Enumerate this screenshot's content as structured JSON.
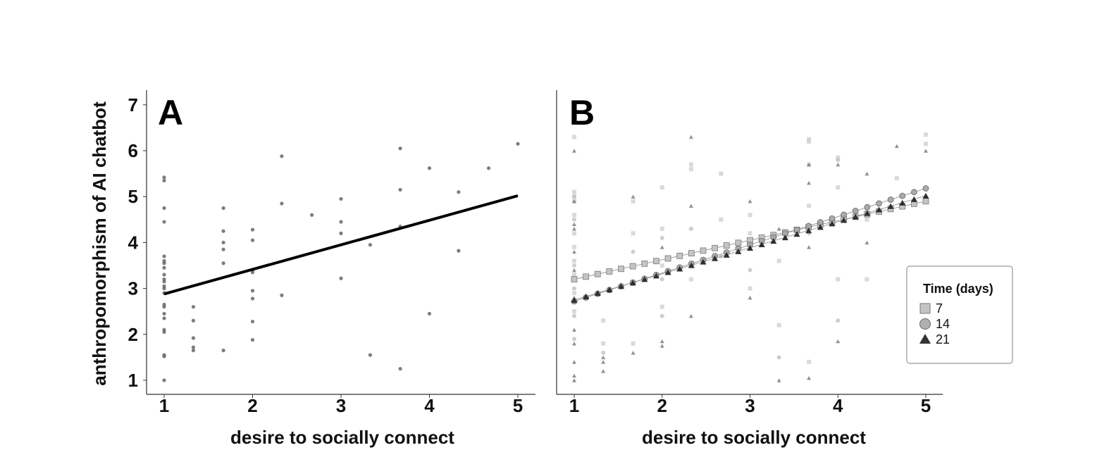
{
  "chart_data": [
    {
      "panel": "A",
      "type": "scatter",
      "xlabel": "desire to socially connect",
      "ylabel": "anthropomorphism of AI chatbot",
      "xlim": [
        0.8,
        5.2
      ],
      "ylim": [
        0.7,
        7.3
      ],
      "xticks": [
        "1",
        "2",
        "3",
        "4",
        "5"
      ],
      "yticks": [
        "1",
        "2",
        "3",
        "4",
        "5",
        "6",
        "7"
      ],
      "points": [
        [
          1,
          1.0
        ],
        [
          1,
          1.52
        ],
        [
          1,
          1.55
        ],
        [
          1,
          2.05
        ],
        [
          1,
          2.1
        ],
        [
          1,
          2.35
        ],
        [
          1,
          2.45
        ],
        [
          1,
          2.6
        ],
        [
          1,
          2.65
        ],
        [
          1,
          2.9
        ],
        [
          1,
          3.0
        ],
        [
          1,
          3.05
        ],
        [
          1,
          3.15
        ],
        [
          1,
          3.2
        ],
        [
          1,
          3.3
        ],
        [
          1,
          3.45
        ],
        [
          1,
          3.55
        ],
        [
          1,
          3.6
        ],
        [
          1,
          3.7
        ],
        [
          1,
          4.45
        ],
        [
          1,
          4.75
        ],
        [
          1,
          5.35
        ],
        [
          1,
          5.42
        ],
        [
          1.33,
          1.65
        ],
        [
          1.33,
          1.72
        ],
        [
          1.33,
          1.92
        ],
        [
          1.33,
          2.3
        ],
        [
          1.33,
          2.6
        ],
        [
          1.67,
          1.65
        ],
        [
          1.67,
          3.55
        ],
        [
          1.67,
          3.85
        ],
        [
          1.67,
          4.0
        ],
        [
          1.67,
          4.25
        ],
        [
          1.67,
          4.75
        ],
        [
          2,
          1.88
        ],
        [
          2,
          2.28
        ],
        [
          2,
          2.78
        ],
        [
          2,
          2.95
        ],
        [
          2,
          3.35
        ],
        [
          2,
          3.4
        ],
        [
          2,
          4.05
        ],
        [
          2,
          4.28
        ],
        [
          2.33,
          2.85
        ],
        [
          2.33,
          4.85
        ],
        [
          2.33,
          5.88
        ],
        [
          2.67,
          4.6
        ],
        [
          3,
          3.22
        ],
        [
          3,
          4.2
        ],
        [
          3,
          4.45
        ],
        [
          3,
          4.95
        ],
        [
          3.33,
          1.55
        ],
        [
          3.33,
          3.95
        ],
        [
          3.67,
          1.25
        ],
        [
          3.67,
          4.35
        ],
        [
          3.67,
          5.15
        ],
        [
          3.67,
          6.05
        ],
        [
          4,
          2.45
        ],
        [
          4,
          5.62
        ],
        [
          4.33,
          3.82
        ],
        [
          4.33,
          5.1
        ],
        [
          4.67,
          5.62
        ],
        [
          5,
          6.15
        ]
      ],
      "fit_line": {
        "x": [
          1,
          5
        ],
        "y": [
          2.88,
          5.02
        ]
      }
    },
    {
      "panel": "B",
      "type": "scatter",
      "xlabel": "desire to socially connect",
      "xlim": [
        0.8,
        5.2
      ],
      "ylim": [
        0.7,
        7.3
      ],
      "xticks": [
        "1",
        "2",
        "3",
        "4",
        "5"
      ],
      "legend": {
        "title": "Time (days)",
        "position": "right"
      },
      "series": [
        {
          "name": "7",
          "marker": "square",
          "color": "#bdbdbd",
          "line": {
            "x_start": 1.0,
            "y_start": 3.2,
            "x_end": 5.0,
            "y_end": 4.9
          },
          "raw_points": [
            [
              1,
              6.3
            ],
            [
              1,
              5.1
            ],
            [
              1,
              5.0
            ],
            [
              1,
              4.9
            ],
            [
              1,
              4.6
            ],
            [
              1,
              4.2
            ],
            [
              1,
              3.9
            ],
            [
              1,
              3.6
            ],
            [
              1,
              3.3
            ],
            [
              1,
              2.9
            ],
            [
              1,
              2.5
            ],
            [
              1.33,
              1.8
            ],
            [
              1.33,
              2.3
            ],
            [
              1.67,
              1.8
            ],
            [
              1.67,
              4.2
            ],
            [
              1.67,
              4.9
            ],
            [
              2,
              5.2
            ],
            [
              2,
              4.3
            ],
            [
              2,
              3.5
            ],
            [
              2,
              2.6
            ],
            [
              2.33,
              5.7
            ],
            [
              2.33,
              5.6
            ],
            [
              2.33,
              3.2
            ],
            [
              2.67,
              5.5
            ],
            [
              2.67,
              4.5
            ],
            [
              3,
              4.6
            ],
            [
              3,
              4.2
            ],
            [
              3,
              3.0
            ],
            [
              3.33,
              3.6
            ],
            [
              3.33,
              2.2
            ],
            [
              3.67,
              6.25
            ],
            [
              3.67,
              6.2
            ],
            [
              3.67,
              5.7
            ],
            [
              3.67,
              4.8
            ],
            [
              3.67,
              1.4
            ],
            [
              4,
              5.85
            ],
            [
              4,
              5.2
            ],
            [
              4,
              3.2
            ],
            [
              4.33,
              4.5
            ],
            [
              4.33,
              3.2
            ],
            [
              4.67,
              5.4
            ],
            [
              5,
              6.35
            ],
            [
              5,
              6.15
            ]
          ]
        },
        {
          "name": "14",
          "marker": "circle",
          "color": "#a9a9a9",
          "line": {
            "x_start": 1.0,
            "y_start": 2.72,
            "x_end": 5.0,
            "y_end": 5.18
          },
          "raw_points": [
            [
              1,
              5.0
            ],
            [
              1,
              4.5
            ],
            [
              1,
              3.5
            ],
            [
              1,
              3.0
            ],
            [
              1,
              2.4
            ],
            [
              1,
              1.9
            ],
            [
              1.33,
              1.6
            ],
            [
              1.67,
              3.8
            ],
            [
              2,
              4.1
            ],
            [
              2,
              3.2
            ],
            [
              2,
              2.4
            ],
            [
              2.33,
              4.3
            ],
            [
              2.67,
              3.7
            ],
            [
              3,
              3.4
            ],
            [
              3.33,
              1.5
            ],
            [
              3.67,
              4.2
            ],
            [
              4,
              5.8
            ],
            [
              4,
              2.3
            ],
            [
              4.33,
              4.7
            ],
            [
              5,
              5.0
            ]
          ]
        },
        {
          "name": "21",
          "marker": "triangle",
          "color": "#555555",
          "line": {
            "x_start": 1.0,
            "y_start": 2.75,
            "x_end": 5.0,
            "y_end": 5.02
          },
          "raw_points": [
            [
              1,
              6.0
            ],
            [
              1,
              4.9
            ],
            [
              1,
              4.4
            ],
            [
              1,
              4.3
            ],
            [
              1,
              3.8
            ],
            [
              1,
              3.4
            ],
            [
              1,
              2.8
            ],
            [
              1,
              2.1
            ],
            [
              1,
              1.8
            ],
            [
              1,
              1.4
            ],
            [
              1,
              1.1
            ],
            [
              1,
              1.0
            ],
            [
              1.33,
              1.5
            ],
            [
              1.33,
              1.4
            ],
            [
              1.33,
              1.2
            ],
            [
              1.67,
              5.0
            ],
            [
              1.67,
              3.1
            ],
            [
              1.67,
              1.6
            ],
            [
              2,
              3.9
            ],
            [
              2,
              1.85
            ],
            [
              2,
              1.75
            ],
            [
              2.33,
              6.3
            ],
            [
              2.33,
              4.8
            ],
            [
              2.33,
              2.4
            ],
            [
              3,
              4.9
            ],
            [
              3,
              2.8
            ],
            [
              3.33,
              4.3
            ],
            [
              3.33,
              1.0
            ],
            [
              3.67,
              5.7
            ],
            [
              3.67,
              5.3
            ],
            [
              3.67,
              3.9
            ],
            [
              3.67,
              1.05
            ],
            [
              4,
              5.7
            ],
            [
              4,
              1.85
            ],
            [
              4.33,
              5.5
            ],
            [
              4.33,
              4.0
            ],
            [
              4.67,
              6.1
            ],
            [
              5,
              6.0
            ]
          ]
        }
      ]
    }
  ],
  "panel_labels": {
    "a": "A",
    "b": "B"
  },
  "legend_title": "Time (days)",
  "legend_labels": [
    "7",
    "14",
    "21"
  ]
}
